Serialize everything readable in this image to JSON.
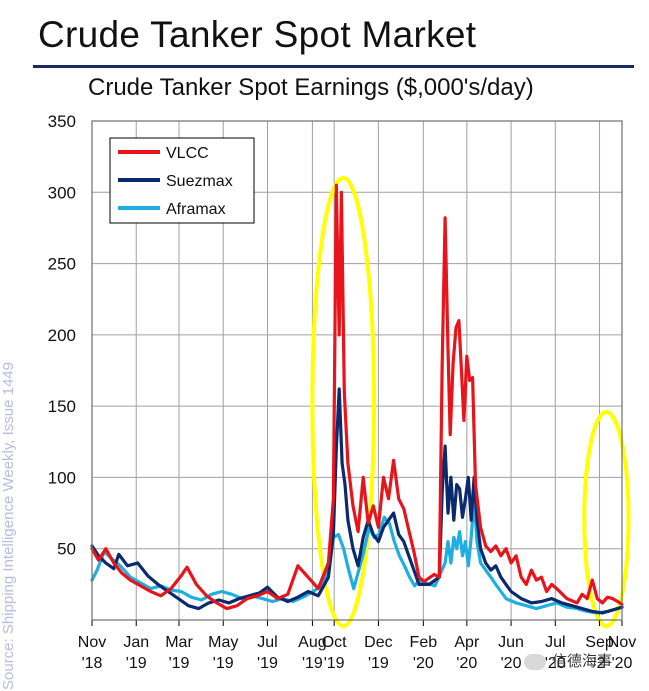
{
  "page_title": "Crude Tanker Spot Market",
  "source_note": "Source: Shipping Intelligence Weekly, Issue 1449",
  "watermark": "信德海事",
  "chart_data": {
    "type": "line",
    "title": "Crude Tanker Spot Earnings ($,000's/day)",
    "xlabel": "",
    "ylabel": "",
    "ylim": [
      0,
      350
    ],
    "yticks": [
      50,
      100,
      150,
      200,
      250,
      300,
      350
    ],
    "xlim": [
      "2018-11-01",
      "2020-11-01"
    ],
    "xticks": [
      {
        "date": "2018-11-01",
        "month": "Nov",
        "year": "'18"
      },
      {
        "date": "2019-01-01",
        "month": "Jan",
        "year": "'19"
      },
      {
        "date": "2019-03-01",
        "month": "Mar",
        "year": "'19"
      },
      {
        "date": "2019-05-01",
        "month": "May",
        "year": "'19"
      },
      {
        "date": "2019-07-01",
        "month": "Jul",
        "year": "'19"
      },
      {
        "date": "2019-09-01",
        "month": "Aug",
        "year": "'19"
      },
      {
        "date": "2019-10-01",
        "month": "Oct",
        "year": "'19"
      },
      {
        "date": "2019-12-01",
        "month": "Dec",
        "year": "'19"
      },
      {
        "date": "2020-02-01",
        "month": "Feb",
        "year": "'20"
      },
      {
        "date": "2020-04-01",
        "month": "Apr",
        "year": "'20"
      },
      {
        "date": "2020-06-01",
        "month": "Jun",
        "year": "'20"
      },
      {
        "date": "2020-08-01",
        "month": "Jul",
        "year": "'20"
      },
      {
        "date": "2020-10-01",
        "month": "Sep",
        "year": "'2"
      },
      {
        "date": "2020-11-01",
        "month": "Nov",
        "year": "'20"
      }
    ],
    "grid": true,
    "legend_position": "top-left",
    "highlights": [
      {
        "from": "2019-09-01",
        "to": "2019-11-25",
        "color": "#ffff00"
      },
      {
        "from": "2020-09-10",
        "to": "2020-11-10",
        "color": "#ffff00"
      }
    ],
    "series": [
      {
        "name": "VLCC",
        "color": "#e8141c",
        "points": [
          [
            "2018-11-01",
            50
          ],
          [
            "2018-11-10",
            42
          ],
          [
            "2018-11-20",
            50
          ],
          [
            "2018-12-01",
            40
          ],
          [
            "2018-12-12",
            33
          ],
          [
            "2018-12-24",
            28
          ],
          [
            "2019-01-07",
            24
          ],
          [
            "2019-01-21",
            20
          ],
          [
            "2019-02-04",
            17
          ],
          [
            "2019-02-18",
            22
          ],
          [
            "2019-03-04",
            31
          ],
          [
            "2019-03-12",
            37
          ],
          [
            "2019-03-25",
            25
          ],
          [
            "2019-04-08",
            17
          ],
          [
            "2019-04-22",
            12
          ],
          [
            "2019-05-06",
            8
          ],
          [
            "2019-05-20",
            10
          ],
          [
            "2019-06-03",
            15
          ],
          [
            "2019-06-17",
            17
          ],
          [
            "2019-07-01",
            20
          ],
          [
            "2019-07-15",
            15
          ],
          [
            "2019-07-29",
            18
          ],
          [
            "2019-08-05",
            28
          ],
          [
            "2019-08-12",
            38
          ],
          [
            "2019-08-26",
            30
          ],
          [
            "2019-09-09",
            22
          ],
          [
            "2019-09-23",
            40
          ],
          [
            "2019-09-30",
            85
          ],
          [
            "2019-10-04",
            305
          ],
          [
            "2019-10-08",
            200
          ],
          [
            "2019-10-11",
            300
          ],
          [
            "2019-10-15",
            160
          ],
          [
            "2019-10-20",
            110
          ],
          [
            "2019-10-27",
            80
          ],
          [
            "2019-11-03",
            62
          ],
          [
            "2019-11-10",
            100
          ],
          [
            "2019-11-17",
            68
          ],
          [
            "2019-11-24",
            80
          ],
          [
            "2019-12-01",
            65
          ],
          [
            "2019-12-08",
            100
          ],
          [
            "2019-12-15",
            85
          ],
          [
            "2019-12-22",
            112
          ],
          [
            "2019-12-29",
            85
          ],
          [
            "2020-01-05",
            78
          ],
          [
            "2020-01-12",
            63
          ],
          [
            "2020-01-19",
            48
          ],
          [
            "2020-01-26",
            30
          ],
          [
            "2020-02-02",
            27
          ],
          [
            "2020-02-16",
            32
          ],
          [
            "2020-02-23",
            30
          ],
          [
            "2020-02-27",
            180
          ],
          [
            "2020-03-02",
            282
          ],
          [
            "2020-03-06",
            190
          ],
          [
            "2020-03-09",
            130
          ],
          [
            "2020-03-13",
            180
          ],
          [
            "2020-03-17",
            205
          ],
          [
            "2020-03-21",
            210
          ],
          [
            "2020-03-25",
            170
          ],
          [
            "2020-03-28",
            140
          ],
          [
            "2020-04-01",
            185
          ],
          [
            "2020-04-05",
            168
          ],
          [
            "2020-04-09",
            170
          ],
          [
            "2020-04-13",
            95
          ],
          [
            "2020-04-20",
            65
          ],
          [
            "2020-04-27",
            52
          ],
          [
            "2020-05-04",
            48
          ],
          [
            "2020-05-11",
            52
          ],
          [
            "2020-05-18",
            45
          ],
          [
            "2020-05-25",
            50
          ],
          [
            "2020-06-01",
            40
          ],
          [
            "2020-06-08",
            45
          ],
          [
            "2020-06-15",
            30
          ],
          [
            "2020-06-22",
            25
          ],
          [
            "2020-06-29",
            35
          ],
          [
            "2020-07-06",
            28
          ],
          [
            "2020-07-13",
            30
          ],
          [
            "2020-07-20",
            20
          ],
          [
            "2020-07-27",
            25
          ],
          [
            "2020-08-03",
            22
          ],
          [
            "2020-08-17",
            15
          ],
          [
            "2020-08-31",
            12
          ],
          [
            "2020-09-07",
            18
          ],
          [
            "2020-09-14",
            15
          ],
          [
            "2020-09-21",
            28
          ],
          [
            "2020-09-28",
            15
          ],
          [
            "2020-10-05",
            12
          ],
          [
            "2020-10-12",
            16
          ],
          [
            "2020-10-19",
            15
          ],
          [
            "2020-10-26",
            13
          ],
          [
            "2020-11-01",
            11
          ]
        ]
      },
      {
        "name": "Suezmax",
        "color": "#0b2a6e",
        "points": [
          [
            "2018-11-01",
            52
          ],
          [
            "2018-11-10",
            45
          ],
          [
            "2018-11-20",
            40
          ],
          [
            "2018-12-01",
            36
          ],
          [
            "2018-12-08",
            46
          ],
          [
            "2018-12-20",
            38
          ],
          [
            "2019-01-03",
            40
          ],
          [
            "2019-01-17",
            31
          ],
          [
            "2019-01-31",
            25
          ],
          [
            "2019-02-14",
            20
          ],
          [
            "2019-02-28",
            15
          ],
          [
            "2019-03-14",
            10
          ],
          [
            "2019-03-28",
            8
          ],
          [
            "2019-04-11",
            12
          ],
          [
            "2019-04-25",
            14
          ],
          [
            "2019-05-09",
            12
          ],
          [
            "2019-05-23",
            15
          ],
          [
            "2019-06-06",
            17
          ],
          [
            "2019-06-20",
            19
          ],
          [
            "2019-07-01",
            23
          ],
          [
            "2019-07-15",
            16
          ],
          [
            "2019-07-29",
            13
          ],
          [
            "2019-08-12",
            16
          ],
          [
            "2019-08-26",
            20
          ],
          [
            "2019-09-09",
            17
          ],
          [
            "2019-09-23",
            30
          ],
          [
            "2019-09-30",
            60
          ],
          [
            "2019-10-04",
            120
          ],
          [
            "2019-10-08",
            162
          ],
          [
            "2019-10-12",
            110
          ],
          [
            "2019-10-16",
            95
          ],
          [
            "2019-10-20",
            70
          ],
          [
            "2019-10-27",
            50
          ],
          [
            "2019-11-03",
            38
          ],
          [
            "2019-11-10",
            58
          ],
          [
            "2019-11-17",
            70
          ],
          [
            "2019-11-24",
            60
          ],
          [
            "2019-12-01",
            55
          ],
          [
            "2019-12-08",
            65
          ],
          [
            "2019-12-15",
            70
          ],
          [
            "2019-12-22",
            75
          ],
          [
            "2019-12-29",
            60
          ],
          [
            "2020-01-05",
            55
          ],
          [
            "2020-01-12",
            45
          ],
          [
            "2020-01-19",
            35
          ],
          [
            "2020-01-26",
            25
          ],
          [
            "2020-02-09",
            25
          ],
          [
            "2020-02-23",
            30
          ],
          [
            "2020-02-27",
            90
          ],
          [
            "2020-03-02",
            122
          ],
          [
            "2020-03-06",
            75
          ],
          [
            "2020-03-10",
            100
          ],
          [
            "2020-03-14",
            70
          ],
          [
            "2020-03-18",
            95
          ],
          [
            "2020-03-22",
            92
          ],
          [
            "2020-03-26",
            72
          ],
          [
            "2020-03-30",
            85
          ],
          [
            "2020-04-03",
            100
          ],
          [
            "2020-04-07",
            70
          ],
          [
            "2020-04-11",
            100
          ],
          [
            "2020-04-15",
            70
          ],
          [
            "2020-04-20",
            50
          ],
          [
            "2020-04-27",
            40
          ],
          [
            "2020-05-04",
            35
          ],
          [
            "2020-05-11",
            38
          ],
          [
            "2020-05-18",
            30
          ],
          [
            "2020-05-25",
            25
          ],
          [
            "2020-06-01",
            20
          ],
          [
            "2020-06-15",
            15
          ],
          [
            "2020-06-29",
            12
          ],
          [
            "2020-07-13",
            13
          ],
          [
            "2020-07-27",
            15
          ],
          [
            "2020-08-10",
            12
          ],
          [
            "2020-08-24",
            10
          ],
          [
            "2020-09-07",
            8
          ],
          [
            "2020-09-21",
            6
          ],
          [
            "2020-10-05",
            5
          ],
          [
            "2020-10-19",
            7
          ],
          [
            "2020-11-01",
            9
          ]
        ]
      },
      {
        "name": "Aframax",
        "color": "#1eaee0",
        "points": [
          [
            "2018-11-01",
            28
          ],
          [
            "2018-11-08",
            35
          ],
          [
            "2018-11-18",
            48
          ],
          [
            "2018-11-28",
            43
          ],
          [
            "2018-12-10",
            38
          ],
          [
            "2018-12-24",
            30
          ],
          [
            "2019-01-07",
            26
          ],
          [
            "2019-01-21",
            22
          ],
          [
            "2019-02-04",
            24
          ],
          [
            "2019-02-18",
            21
          ],
          [
            "2019-03-04",
            20
          ],
          [
            "2019-03-18",
            16
          ],
          [
            "2019-04-01",
            14
          ],
          [
            "2019-04-15",
            18
          ],
          [
            "2019-04-29",
            20
          ],
          [
            "2019-05-13",
            18
          ],
          [
            "2019-05-27",
            15
          ],
          [
            "2019-06-10",
            17
          ],
          [
            "2019-06-24",
            15
          ],
          [
            "2019-07-08",
            13
          ],
          [
            "2019-07-22",
            15
          ],
          [
            "2019-08-05",
            13
          ],
          [
            "2019-08-19",
            16
          ],
          [
            "2019-09-02",
            20
          ],
          [
            "2019-09-16",
            25
          ],
          [
            "2019-09-23",
            40
          ],
          [
            "2019-09-30",
            58
          ],
          [
            "2019-10-07",
            60
          ],
          [
            "2019-10-14",
            50
          ],
          [
            "2019-10-21",
            35
          ],
          [
            "2019-10-28",
            22
          ],
          [
            "2019-11-04",
            35
          ],
          [
            "2019-11-11",
            48
          ],
          [
            "2019-11-18",
            65
          ],
          [
            "2019-11-25",
            58
          ],
          [
            "2019-12-02",
            60
          ],
          [
            "2019-12-09",
            72
          ],
          [
            "2019-12-16",
            68
          ],
          [
            "2019-12-23",
            55
          ],
          [
            "2019-12-30",
            45
          ],
          [
            "2020-01-06",
            38
          ],
          [
            "2020-01-13",
            30
          ],
          [
            "2020-01-20",
            24
          ],
          [
            "2020-01-27",
            28
          ],
          [
            "2020-02-03",
            26
          ],
          [
            "2020-02-17",
            24
          ],
          [
            "2020-03-02",
            40
          ],
          [
            "2020-03-06",
            55
          ],
          [
            "2020-03-10",
            40
          ],
          [
            "2020-03-14",
            58
          ],
          [
            "2020-03-18",
            50
          ],
          [
            "2020-03-22",
            62
          ],
          [
            "2020-03-26",
            45
          ],
          [
            "2020-03-30",
            55
          ],
          [
            "2020-04-03",
            38
          ],
          [
            "2020-04-07",
            58
          ],
          [
            "2020-04-11",
            85
          ],
          [
            "2020-04-15",
            55
          ],
          [
            "2020-04-20",
            40
          ],
          [
            "2020-04-27",
            35
          ],
          [
            "2020-05-04",
            30
          ],
          [
            "2020-05-11",
            25
          ],
          [
            "2020-05-18",
            20
          ],
          [
            "2020-05-25",
            15
          ],
          [
            "2020-06-08",
            12
          ],
          [
            "2020-06-22",
            10
          ],
          [
            "2020-07-06",
            8
          ],
          [
            "2020-07-20",
            10
          ],
          [
            "2020-08-03",
            12
          ],
          [
            "2020-08-17",
            9
          ],
          [
            "2020-08-31",
            8
          ],
          [
            "2020-09-14",
            6
          ],
          [
            "2020-09-28",
            5
          ],
          [
            "2020-10-12",
            6
          ],
          [
            "2020-10-26",
            8
          ],
          [
            "2020-11-01",
            9
          ]
        ]
      }
    ]
  }
}
